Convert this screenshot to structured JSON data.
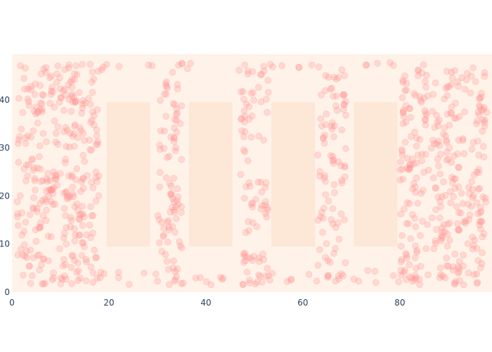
{
  "chart_data": {
    "type": "scatter",
    "title": "",
    "xlabel": "",
    "ylabel": "",
    "xlim": [
      0,
      99
    ],
    "ylim": [
      0,
      49.5
    ],
    "x_ticks": [
      0,
      20,
      40,
      60,
      80
    ],
    "y_ticks": [
      0,
      10,
      20,
      30,
      40
    ],
    "grid": false,
    "legend": "none",
    "plot_background": "#fff3e9",
    "rectangle_color": "#fde7d6",
    "marker_color": "#ff8a8a",
    "marker_opacity": 0.25,
    "rectangles": [
      {
        "x0": 19.5,
        "x1": 28.5,
        "y0": 9.5,
        "y1": 39.5
      },
      {
        "x0": 36.5,
        "x1": 45.5,
        "y0": 9.5,
        "y1": 39.5
      },
      {
        "x0": 53.5,
        "x1": 62.5,
        "y0": 9.5,
        "y1": 39.5
      },
      {
        "x0": 70.5,
        "x1": 79.5,
        "y0": 9.5,
        "y1": 39.5
      }
    ],
    "point_regions": [
      {
        "x_range": [
          1,
          18
        ],
        "y_range": [
          1.5,
          47.5
        ],
        "count": 330
      },
      {
        "x_range": [
          80,
          98
        ],
        "y_range": [
          1.5,
          47.5
        ],
        "count": 330
      },
      {
        "x_range": [
          30,
          35
        ],
        "y_range": [
          1.5,
          47.5
        ],
        "count": 90
      },
      {
        "x_range": [
          47,
          53
        ],
        "y_range": [
          1.5,
          47.5
        ],
        "count": 90
      },
      {
        "x_range": [
          63,
          69
        ],
        "y_range": [
          1.5,
          47.5
        ],
        "count": 90
      },
      {
        "x_range": [
          18,
          30
        ],
        "y_range": [
          1.5,
          4.5
        ],
        "count": 8
      },
      {
        "x_range": [
          34,
          47
        ],
        "y_range": [
          1.5,
          4.5
        ],
        "count": 8
      },
      {
        "x_range": [
          52,
          63
        ],
        "y_range": [
          1.5,
          4.5
        ],
        "count": 8
      },
      {
        "x_range": [
          68,
          80
        ],
        "y_range": [
          1.5,
          4.5
        ],
        "count": 8
      },
      {
        "x_range": [
          18,
          30
        ],
        "y_range": [
          46,
          47.8
        ],
        "count": 6
      },
      {
        "x_range": [
          34,
          47
        ],
        "y_range": [
          46,
          47.8
        ],
        "count": 6
      },
      {
        "x_range": [
          52,
          63
        ],
        "y_range": [
          46,
          47.8
        ],
        "count": 6
      },
      {
        "x_range": [
          68,
          80
        ],
        "y_range": [
          46,
          47.8
        ],
        "count": 6
      }
    ]
  }
}
